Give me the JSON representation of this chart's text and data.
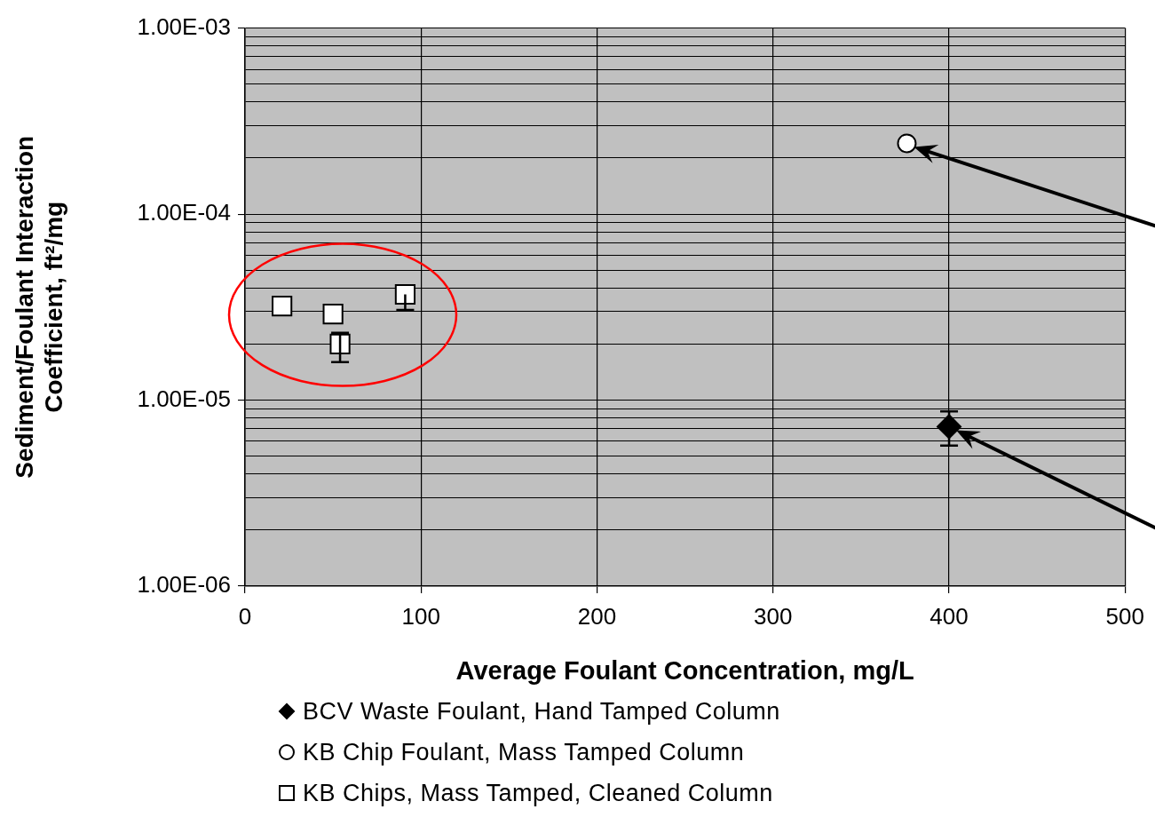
{
  "chart_data": {
    "type": "scatter",
    "xlabel": "Average Foulant Concentration, mg/L",
    "ylabel": "Sediment/Foulant Interaction Coefficient, ft²/mg",
    "xlim": [
      0,
      500
    ],
    "xticks": [
      0,
      100,
      200,
      300,
      400,
      500
    ],
    "ylim": [
      1e-06,
      0.001
    ],
    "yticks": [
      {
        "value": 1e-06,
        "label": "1.00E-06"
      },
      {
        "value": 2e-06,
        "label": null
      },
      {
        "value": 3e-06,
        "label": null
      },
      {
        "value": 4e-06,
        "label": null
      },
      {
        "value": 5e-06,
        "label": null
      },
      {
        "value": 6e-06,
        "label": null
      },
      {
        "value": 7e-06,
        "label": null
      },
      {
        "value": 8e-06,
        "label": null
      },
      {
        "value": 9e-06,
        "label": null
      },
      {
        "value": 1e-05,
        "label": "1.00E-05"
      },
      {
        "value": 2e-05,
        "label": null
      },
      {
        "value": 3e-05,
        "label": null
      },
      {
        "value": 4e-05,
        "label": null
      },
      {
        "value": 5e-05,
        "label": null
      },
      {
        "value": 6e-05,
        "label": null
      },
      {
        "value": 7e-05,
        "label": null
      },
      {
        "value": 8e-05,
        "label": null
      },
      {
        "value": 9e-05,
        "label": null
      },
      {
        "value": 0.0001,
        "label": "1.00E-04"
      },
      {
        "value": 0.0002,
        "label": null
      },
      {
        "value": 0.0003,
        "label": null
      },
      {
        "value": 0.0004,
        "label": null
      },
      {
        "value": 0.0005,
        "label": null
      },
      {
        "value": 0.0006,
        "label": null
      },
      {
        "value": 0.0007,
        "label": null
      },
      {
        "value": 0.0008,
        "label": null
      },
      {
        "value": 0.0009,
        "label": null
      },
      {
        "value": 0.001,
        "label": "1.00E-03"
      }
    ],
    "log": "y",
    "grid": true,
    "legend": "bottom",
    "series": [
      {
        "name": "BCV Waste Foulant, Hand Tamped Column",
        "color": "#000000",
        "marker": "diamond",
        "x": [
          400
        ],
        "values": [
          7.2e-06
        ],
        "errors": [
          [
            5.7e-06,
            8.7e-06
          ]
        ]
      },
      {
        "name": "KB Chip Foulant, Mass Tamped Column",
        "color": "#ffffff",
        "marker": "circle",
        "x": [
          376
        ],
        "values": [
          0.00024
        ]
      },
      {
        "name": "KB Chips, Mass Tamped, Cleaned Column",
        "color": "#ffffff",
        "marker": "square",
        "x": [
          21,
          50,
          54,
          91
        ],
        "values": [
          3.2e-05,
          2.9e-05,
          2e-05,
          3.7e-05
        ],
        "errors": [
          null,
          null,
          [
            1.6e-05,
            2.3e-05
          ],
          [
            3.05e-05,
            3.7e-05
          ]
        ]
      }
    ]
  }
}
